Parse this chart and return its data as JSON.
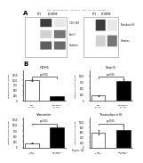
{
  "title_text": "Patent Application Publication",
  "header_line": "Patent Application Publication    Aug. 28, 2014    Sheet 1 of 13    US 2014/0242028 A1",
  "panel_A_label": "A",
  "panel_B_label": "B",
  "western_blot": {
    "left_groups": [
      "BT1",
      "BCI-BM8"
    ],
    "left_labels": [
      "CDH 108",
      "Snail1",
      "Histones"
    ],
    "right_groups": [
      "BT1",
      "BCI-BM8"
    ],
    "right_labels": [
      "Transducin B",
      "Histones"
    ]
  },
  "bar_charts": [
    {
      "title": "CDH1",
      "ylabel": "relative relative change",
      "categories": [
        "BT1\n(n=38)",
        "BCI-BM8.2\n(n=38)"
      ],
      "values": [
        1000,
        200
      ],
      "errors": [
        50,
        30
      ],
      "colors": [
        "white",
        "black"
      ],
      "pvalue": "p<0.01"
    },
    {
      "title": "Snail1",
      "ylabel": "relative relative change",
      "categories": [
        "BT1\n(n=38)",
        "BCI-BM8.2\n(n=38)"
      ],
      "values": [
        200,
        800
      ],
      "errors": [
        30,
        60
      ],
      "colors": [
        "white",
        "black"
      ],
      "pvalue": "p<0.01"
    },
    {
      "title": "Vimentin",
      "ylabel": "relative relative change",
      "categories": [
        "BT1\n(n=38)",
        "BCI-BM8.2\n(n=38)"
      ],
      "values": [
        200,
        900
      ],
      "errors": [
        25,
        70
      ],
      "colors": [
        "white",
        "black"
      ],
      "pvalue": "p<0.01"
    },
    {
      "title": "Transducin B",
      "ylabel": "relative relative change",
      "categories": [
        "BT1\n(n=38)",
        "BCI-BM8.2\n(n=38)"
      ],
      "values": [
        600,
        700
      ],
      "errors": [
        80,
        150
      ],
      "colors": [
        "white",
        "black"
      ],
      "pvalue": "p<0.05"
    }
  ],
  "figure_label": "Figure 1A",
  "bg_color": "#ffffff",
  "bar_edge_color": "#000000",
  "text_color": "#000000",
  "grid_color": "#cccccc"
}
